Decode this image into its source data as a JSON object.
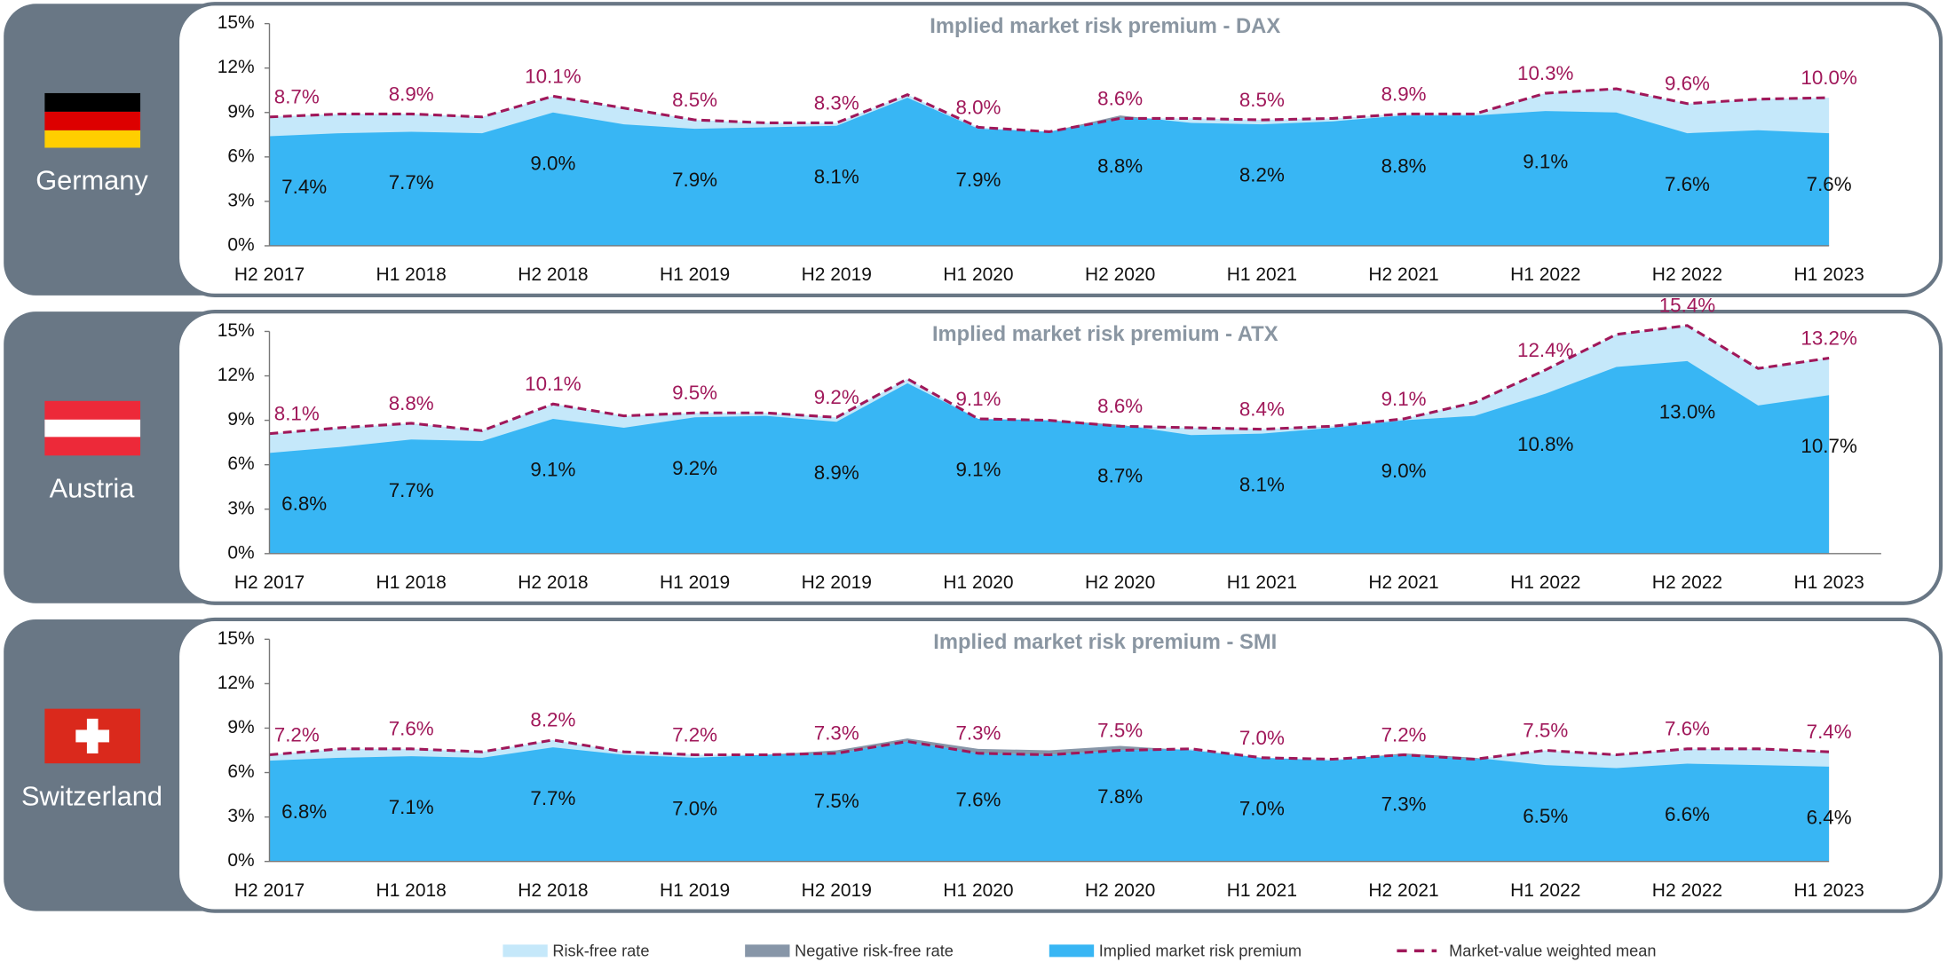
{
  "chart_data": [
    {
      "type": "area",
      "country": "Germany",
      "title": "Implied market risk premium - DAX",
      "categories": [
        "H2 2017",
        null,
        "H1 2018",
        null,
        "H2 2018",
        null,
        "H1 2019",
        null,
        "H2 2019",
        null,
        "H1 2020",
        null,
        "H2 2020",
        null,
        "H1 2021",
        null,
        "H2 2021",
        null,
        "H1 2022",
        null,
        "H2 2022",
        null,
        "H1 2023"
      ],
      "ylim": [
        0,
        15
      ],
      "yticks": [
        {
          "value": 0,
          "label": "0%"
        },
        {
          "value": 3,
          "label": "3%"
        },
        {
          "value": 6,
          "label": "6%"
        },
        {
          "value": 9,
          "label": "9%"
        },
        {
          "value": 12,
          "label": "12%"
        },
        {
          "value": 15,
          "label": "15%"
        }
      ],
      "series": [
        {
          "values": [
            7.4,
            7.6,
            7.7,
            7.6,
            9.0,
            8.2,
            7.9,
            8.0,
            8.1,
            10.0,
            7.9,
            7.7,
            8.8,
            8.3,
            8.2,
            8.4,
            8.8,
            8.8,
            9.1,
            9.0,
            7.6,
            7.8,
            7.6
          ],
          "value_labels": [
            "7.4%",
            null,
            "7.7%",
            null,
            "9.0%",
            null,
            "7.9%",
            null,
            "8.1%",
            null,
            "7.9%",
            null,
            "8.8%",
            null,
            "8.2%",
            null,
            "8.8%",
            null,
            "9.1%",
            null,
            "7.6%",
            null,
            "7.6%"
          ]
        },
        {
          "values": [
            8.7,
            8.9,
            8.9,
            8.7,
            10.1,
            9.3,
            8.5,
            8.3,
            8.3,
            10.2,
            8.0,
            7.7,
            8.6,
            8.6,
            8.5,
            8.6,
            8.9,
            8.9,
            10.3,
            10.6,
            9.6,
            9.9,
            10.0
          ],
          "value_labels": [
            "8.7%",
            null,
            "8.9%",
            null,
            "10.1%",
            null,
            "8.5%",
            null,
            "8.3%",
            null,
            "8.0%",
            null,
            "8.6%",
            null,
            "8.5%",
            null,
            "8.9%",
            null,
            "10.3%",
            null,
            "9.6%",
            null,
            "10.0%"
          ]
        }
      ]
    },
    {
      "type": "area",
      "country": "Austria",
      "title": "Implied market risk premium - ATX",
      "categories": [
        "H2 2017",
        null,
        "H1 2018",
        null,
        "H2 2018",
        null,
        "H1 2019",
        null,
        "H2 2019",
        null,
        "H1 2020",
        null,
        "H2 2020",
        null,
        "H1 2021",
        null,
        "H2 2021",
        null,
        "H1 2022",
        null,
        "H2 2022",
        null,
        "H1 2023"
      ],
      "ylim": [
        0,
        15
      ],
      "yticks": [
        {
          "value": 0,
          "label": "0%"
        },
        {
          "value": 3,
          "label": "3%"
        },
        {
          "value": 6,
          "label": "6%"
        },
        {
          "value": 9,
          "label": "9%"
        },
        {
          "value": 12,
          "label": "12%"
        },
        {
          "value": 15,
          "label": "15%"
        }
      ],
      "series": [
        {
          "values": [
            6.8,
            7.2,
            7.7,
            7.6,
            9.1,
            8.5,
            9.2,
            9.3,
            8.9,
            11.5,
            9.1,
            9.0,
            8.7,
            8.0,
            8.1,
            8.5,
            9.0,
            9.3,
            10.8,
            12.6,
            13.0,
            10.0,
            10.7
          ],
          "value_labels": [
            "6.8%",
            null,
            "7.7%",
            null,
            "9.1%",
            null,
            "9.2%",
            null,
            "8.9%",
            null,
            "9.1%",
            null,
            "8.7%",
            null,
            "8.1%",
            null,
            "9.0%",
            null,
            "10.8%",
            null,
            "13.0%",
            null,
            "10.7%"
          ]
        },
        {
          "values": [
            8.1,
            8.5,
            8.8,
            8.3,
            10.1,
            9.3,
            9.5,
            9.5,
            9.2,
            11.8,
            9.1,
            9.0,
            8.6,
            8.5,
            8.4,
            8.6,
            9.1,
            10.2,
            12.4,
            14.8,
            15.4,
            12.5,
            13.2
          ],
          "value_labels": [
            "8.1%",
            null,
            "8.8%",
            null,
            "10.1%",
            null,
            "9.5%",
            null,
            "9.2%",
            null,
            "9.1%",
            null,
            "8.6%",
            null,
            "8.4%",
            null,
            "9.1%",
            null,
            "12.4%",
            null,
            "15.4%",
            null,
            "13.2%"
          ]
        }
      ]
    },
    {
      "type": "area",
      "country": "Switzerland",
      "title": "Implied market risk premium - SMI",
      "categories": [
        "H2 2017",
        null,
        "H1 2018",
        null,
        "H2 2018",
        null,
        "H1 2019",
        null,
        "H2 2019",
        null,
        "H1 2020",
        null,
        "H2 2020",
        null,
        "H1 2021",
        null,
        "H2 2021",
        null,
        "H1 2022",
        null,
        "H2 2022",
        null,
        "H1 2023"
      ],
      "ylim": [
        0,
        15
      ],
      "yticks": [
        {
          "value": 0,
          "label": "0%"
        },
        {
          "value": 3,
          "label": "3%"
        },
        {
          "value": 6,
          "label": "6%"
        },
        {
          "value": 9,
          "label": "9%"
        },
        {
          "value": 12,
          "label": "12%"
        },
        {
          "value": 15,
          "label": "15%"
        }
      ],
      "series": [
        {
          "values": [
            6.8,
            7.0,
            7.1,
            7.0,
            7.7,
            7.2,
            7.0,
            7.2,
            7.5,
            8.3,
            7.6,
            7.5,
            7.8,
            7.5,
            7.0,
            6.8,
            7.3,
            7.0,
            6.5,
            6.3,
            6.6,
            6.5,
            6.4
          ],
          "value_labels": [
            "6.8%",
            null,
            "7.1%",
            null,
            "7.7%",
            null,
            "7.0%",
            null,
            "7.5%",
            null,
            "7.6%",
            null,
            "7.8%",
            null,
            "7.0%",
            null,
            "7.3%",
            null,
            "6.5%",
            null,
            "6.6%",
            null,
            "6.4%"
          ]
        },
        {
          "values": [
            7.2,
            7.6,
            7.6,
            7.4,
            8.2,
            7.4,
            7.2,
            7.2,
            7.3,
            8.1,
            7.3,
            7.2,
            7.5,
            7.6,
            7.0,
            6.9,
            7.2,
            6.9,
            7.5,
            7.2,
            7.6,
            7.6,
            7.4
          ],
          "value_labels": [
            "7.2%",
            null,
            "7.6%",
            null,
            "8.2%",
            null,
            "7.2%",
            null,
            "7.3%",
            null,
            "7.3%",
            null,
            "7.5%",
            null,
            "7.0%",
            null,
            "7.2%",
            null,
            "7.5%",
            null,
            "7.6%",
            null,
            "7.4%"
          ]
        }
      ]
    }
  ],
  "legend": [
    {
      "name": "Risk-free rate",
      "color": "#c5e8fa"
    },
    {
      "name": "Negative risk-free rate",
      "color": "#8796a8"
    },
    {
      "name": "Implied market risk premium",
      "color": "#38b6f4"
    },
    {
      "name": "Market-value weighted mean",
      "color": "#a0185a"
    }
  ]
}
